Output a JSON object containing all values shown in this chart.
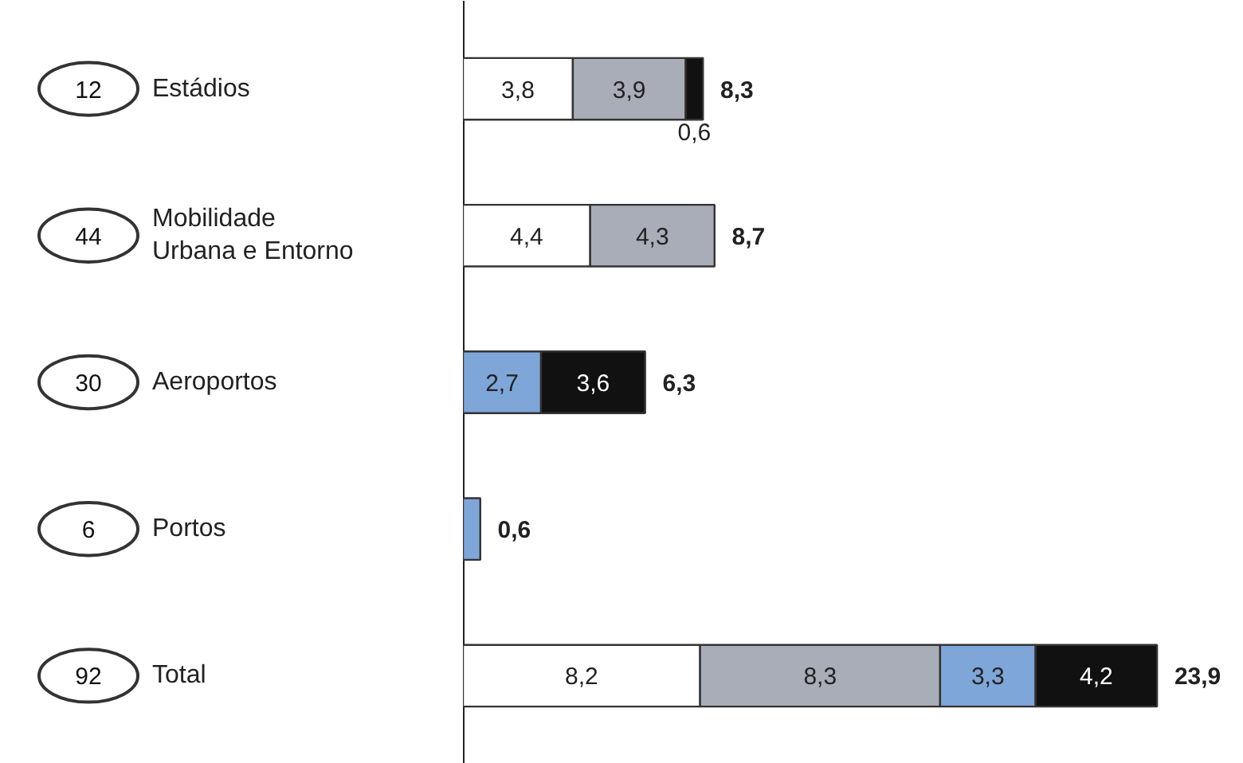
{
  "chart_data": {
    "type": "bar",
    "orientation": "horizontal",
    "stacked": true,
    "categories": [
      "Estádios",
      "Mobilidade\nUrbana e Entorno",
      "Aeroportos",
      "Portos",
      "Total"
    ],
    "annotations": [
      "12",
      "44",
      "30",
      "6",
      "92"
    ],
    "xlim": [
      0,
      27
    ],
    "tick_labels": false,
    "series": [
      {
        "color": "#ffffff",
        "values": [
          3.8,
          4.4,
          null,
          null,
          8.2
        ],
        "value_labels": [
          "3,8",
          "4,4",
          null,
          null,
          "8,2"
        ]
      },
      {
        "color": "#a9adb8",
        "values": [
          3.9,
          4.3,
          null,
          null,
          8.3
        ],
        "value_labels": [
          "3,9",
          "4,3",
          null,
          null,
          "8,3"
        ]
      },
      {
        "color": "#7ea6d8",
        "values": [
          null,
          null,
          2.7,
          0.6,
          3.3
        ],
        "value_labels": [
          null,
          null,
          "2,7",
          null,
          "3,3"
        ]
      },
      {
        "color": "#111111",
        "values": [
          0.6,
          null,
          3.6,
          null,
          4.2
        ],
        "value_labels": [
          "0,6",
          null,
          "3,6",
          null,
          "4,2"
        ]
      }
    ],
    "totals": [
      "8,3",
      "8,7",
      "6,3",
      "0,6",
      "23,9"
    ]
  }
}
